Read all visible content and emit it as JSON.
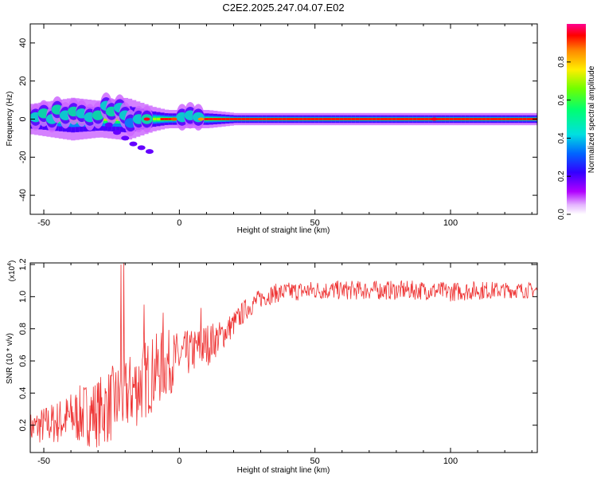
{
  "title": "C2E2.2025.247.04.07.E02",
  "chart_data": [
    {
      "type": "heatmap",
      "title": "C2E2.2025.247.04.07.E02",
      "xlabel": "Height of straight line (km)",
      "ylabel": "Frequency (Hz)",
      "xlim": [
        -55,
        132
      ],
      "ylim": [
        -50,
        50
      ],
      "xticks": [
        -50,
        0,
        50,
        100
      ],
      "xtick_labels": [
        "-50",
        "0",
        "50",
        "100"
      ],
      "yticks": [
        -40,
        -20,
        0,
        20,
        40
      ],
      "ytick_labels": [
        "-40",
        "-20",
        "0",
        "20",
        "40"
      ],
      "colorbar": {
        "label": "Normalized spectral amplitude",
        "range": [
          0,
          1
        ],
        "ticks": [
          0.0,
          0.2,
          0.4,
          0.6,
          0.8
        ],
        "tick_labels": [
          "0.0",
          "0.2",
          "0.4",
          "0.6",
          "0.8"
        ]
      },
      "band_height": [
        -55,
        -40,
        -30,
        -20,
        -10,
        -5,
        0,
        10,
        20,
        30,
        50,
        75,
        100,
        132
      ],
      "band_halfwidth_hz": [
        5,
        7,
        6,
        7,
        4,
        3,
        3,
        3,
        2,
        2,
        2,
        2,
        2,
        2
      ],
      "scatter_patches": [
        {
          "x": -53,
          "f": 1,
          "a": 0.45
        },
        {
          "x": -50,
          "f": 3,
          "a": 0.5
        },
        {
          "x": -47,
          "f": 0,
          "a": 0.45
        },
        {
          "x": -45,
          "f": 5,
          "a": 0.5
        },
        {
          "x": -42,
          "f": 2,
          "a": 0.45
        },
        {
          "x": -39,
          "f": 4,
          "a": 0.5
        },
        {
          "x": -36,
          "f": 3,
          "a": 0.45
        },
        {
          "x": -33,
          "f": 1,
          "a": 0.45
        },
        {
          "x": -30,
          "f": 2,
          "a": 0.5
        },
        {
          "x": -27,
          "f": 7,
          "a": 0.45
        },
        {
          "x": -25,
          "f": 4,
          "a": 0.5
        },
        {
          "x": -22,
          "f": 6,
          "a": 0.45
        },
        {
          "x": -20,
          "f": 2,
          "a": 0.45
        },
        {
          "x": -18,
          "f": -2,
          "a": 0.35
        },
        {
          "x": -15,
          "f": 0,
          "a": 0.45
        },
        {
          "x": -12,
          "f": 0,
          "a": 0.5
        },
        {
          "x": 1,
          "f": 1,
          "a": 0.45
        },
        {
          "x": 4,
          "f": 2,
          "a": 0.45
        },
        {
          "x": 7,
          "f": 1,
          "a": 0.45
        }
      ],
      "descending_branch": [
        {
          "x": -26,
          "f": -3
        },
        {
          "x": -23,
          "f": -7
        },
        {
          "x": -20,
          "f": -10
        },
        {
          "x": -17,
          "f": -13
        },
        {
          "x": -14,
          "f": -15
        },
        {
          "x": -11,
          "f": -17
        }
      ],
      "hot_spots": [
        {
          "x": -12,
          "a": 0.95
        },
        {
          "x": -2,
          "a": 0.9
        },
        {
          "x": 8,
          "a": 0.85
        },
        {
          "x": 94,
          "a": 0.95
        }
      ]
    },
    {
      "type": "line",
      "xlabel": "Height of straight line (km)",
      "ylabel": "SNR (10 * v/v)",
      "y_multiplier": "(x10",
      "y_multiplier_exp": "4",
      "y_multiplier_close": ")",
      "xlim": [
        -55,
        132
      ],
      "ylim": [
        0.03,
        1.21
      ],
      "xticks": [
        -50,
        0,
        50,
        100
      ],
      "xtick_labels": [
        "-50",
        "0",
        "50",
        "100"
      ],
      "yticks": [
        0.2,
        0.4,
        0.6,
        0.8,
        1.0,
        1.2
      ],
      "ytick_labels": [
        "0.2",
        "0.4",
        "0.6",
        "0.8",
        "1.0",
        "1.2"
      ],
      "color": "#ee3333",
      "envelope": {
        "x": [
          -55,
          -50,
          -45,
          -40,
          -35,
          -30,
          -25,
          -20,
          -15,
          -10,
          -5,
          0,
          5,
          10,
          15,
          20,
          25,
          30,
          35,
          40,
          50,
          60,
          70,
          80,
          90,
          100,
          110,
          120,
          132
        ],
        "mean": [
          0.18,
          0.2,
          0.22,
          0.25,
          0.27,
          0.28,
          0.33,
          0.38,
          0.45,
          0.52,
          0.58,
          0.62,
          0.66,
          0.7,
          0.75,
          0.83,
          0.93,
          0.99,
          1.02,
          1.03,
          1.04,
          1.04,
          1.04,
          1.04,
          1.04,
          1.03,
          1.04,
          1.04,
          1.04
        ],
        "spread": [
          0.1,
          0.12,
          0.14,
          0.16,
          0.2,
          0.22,
          0.24,
          0.24,
          0.26,
          0.24,
          0.22,
          0.16,
          0.14,
          0.14,
          0.1,
          0.08,
          0.07,
          0.06,
          0.06,
          0.06,
          0.06,
          0.06,
          0.06,
          0.06,
          0.06,
          0.06,
          0.06,
          0.05,
          0.05
        ]
      },
      "spikes": [
        {
          "x": -20.5,
          "y": 1.21
        },
        {
          "x": -21.5,
          "y": 1.2
        },
        {
          "x": -13,
          "y": 0.95
        },
        {
          "x": -6,
          "y": 0.9
        },
        {
          "x": 8,
          "y": 0.93
        }
      ]
    }
  ]
}
